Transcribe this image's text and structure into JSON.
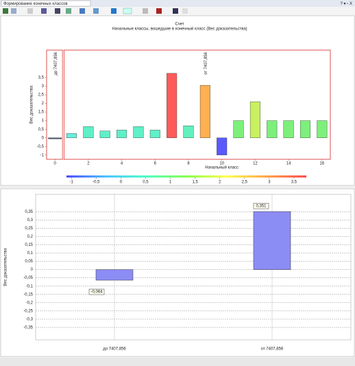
{
  "window": {
    "title": "Формирование конечных классов",
    "controls": "? ▾ ▫ X"
  },
  "chart_data": [
    {
      "type": "bar",
      "title": "Счет",
      "subtitle": "Начальные классы, вошедшие в конечный класс (Вес доказательства)",
      "ylabel": "Вес доказательства",
      "xlabel": "Начальный класс",
      "x": [
        0,
        1,
        2,
        3,
        4,
        5,
        6,
        7,
        8,
        9,
        10,
        11,
        12,
        13,
        14,
        15,
        16
      ],
      "values": [
        -0.06,
        0.25,
        0.65,
        0.4,
        0.45,
        0.65,
        0.45,
        3.75,
        0.7,
        3.05,
        -1.0,
        1.0,
        2.1,
        1.0,
        1.0,
        1.0,
        1.0
      ],
      "colors": [
        "#3d4f6b",
        "#66eedd",
        "#5ff0c8",
        "#5ff0c8",
        "#5ff0c8",
        "#5ff0c8",
        "#5ff0c8",
        "#ff5a5a",
        "#62f0bc",
        "#ffb050",
        "#5a5aff",
        "#7cf07a",
        "#c8f060",
        "#7cf07a",
        "#7cf07a",
        "#7cf07a",
        "#7cf07a"
      ],
      "xlim": [
        -0.5,
        16.5
      ],
      "xticks": [
        0,
        2,
        4,
        6,
        8,
        10,
        12,
        14,
        16
      ],
      "ylim": [
        -1.25,
        5.1
      ],
      "yticks": [
        -1,
        {
          "value": -0.5,
          "label": "-0,5"
        },
        0,
        {
          "value": 0.5,
          "label": "0,5"
        },
        1,
        {
          "value": 1.5,
          "label": "1,5"
        },
        2,
        {
          "value": 2.5,
          "label": "2,5"
        },
        3,
        {
          "value": 3.5,
          "label": "3,5"
        }
      ],
      "annotations": [
        {
          "text": "до 7407,856",
          "x": 0
        },
        {
          "text": "от 7407,856",
          "x": 9
        }
      ],
      "colorbar": {
        "range": [
          -1.1,
          3.75
        ],
        "colors": [
          "#4040ff",
          "#40c0ff",
          "#40ffc0",
          "#80ff40",
          "#ffff40",
          "#ffa040",
          "#ff4040"
        ],
        "ticks": [
          -1,
          {
            "value": -0.5,
            "label": "-0,5"
          },
          0,
          {
            "value": 0.5,
            "label": "0,5"
          },
          1,
          {
            "value": 1.5,
            "label": "1,5"
          },
          2,
          {
            "value": 2.5,
            "label": "2,5"
          },
          3,
          {
            "value": 3.5,
            "label": "3,5"
          }
        ]
      }
    },
    {
      "type": "bar",
      "ylabel": "Вес доказательства",
      "categories": [
        "до 7407,856",
        "от 7407,856"
      ],
      "values": [
        -0.064,
        0.351
      ],
      "value_labels": [
        "-0,064",
        "0,351"
      ],
      "color": "#8c8cf5",
      "ylim": [
        -0.425,
        0.455
      ],
      "grid": true,
      "yticks": [
        {
          "value": -0.35,
          "label": "-0,35"
        },
        {
          "value": -0.3,
          "label": "-0,3"
        },
        {
          "value": -0.25,
          "label": "-0,25"
        },
        {
          "value": -0.2,
          "label": "-0,2"
        },
        {
          "value": -0.15,
          "label": "-0,15"
        },
        {
          "value": -0.1,
          "label": "-0,1"
        },
        {
          "value": -0.05,
          "label": "-0,05"
        },
        0,
        {
          "value": 0.05,
          "label": "0,05"
        },
        {
          "value": 0.1,
          "label": "0,1"
        },
        {
          "value": 0.15,
          "label": "0,15"
        },
        {
          "value": 0.2,
          "label": "0,2"
        },
        {
          "value": 0.25,
          "label": "0,25"
        },
        {
          "value": 0.3,
          "label": "0,3"
        },
        {
          "value": 0.35,
          "label": "0,35"
        }
      ]
    }
  ]
}
